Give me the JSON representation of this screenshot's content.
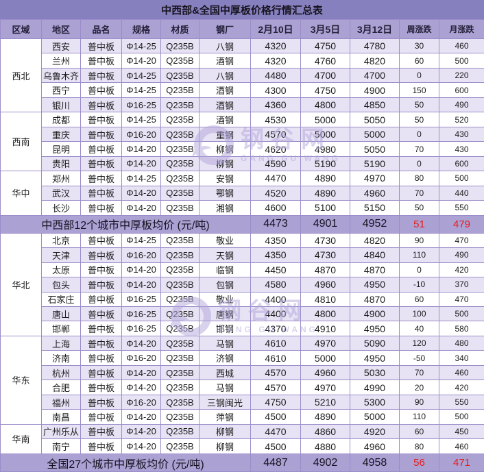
{
  "title": "中西部&全国中厚板价格行情汇总表",
  "watermark": {
    "cn": "钢谷网",
    "en": "GANG GU WANG"
  },
  "colors": {
    "title_bar": "#8680BF",
    "header_row": "#ABA1D3",
    "summary_row": "#ABA1D3",
    "stripe": "#E7E2F4",
    "grid_line": "#9b8cc9",
    "up_red": "#f21d1d",
    "down_green": "#2eb573"
  },
  "chart_data": {
    "type": "table",
    "title": "中西部&全国中厚板价格行情汇总表",
    "columns": [
      "区域",
      "地区",
      "品名",
      "规格",
      "材质",
      "钢厂",
      "2月10日",
      "3月5日",
      "3月12日",
      "周涨跌",
      "月涨跌"
    ],
    "sections": [
      {
        "region": "西北",
        "rows": [
          [
            "西安",
            "普中板",
            "Φ14-25",
            "Q235B",
            "八钢",
            "4320",
            "4750",
            "4780",
            "30",
            "460"
          ],
          [
            "兰州",
            "普中板",
            "Φ14-20",
            "Q235B",
            "酒钢",
            "4320",
            "4760",
            "4820",
            "60",
            "500"
          ],
          [
            "乌鲁木齐",
            "普中板",
            "Φ14-25",
            "Q235B",
            "八钢",
            "4480",
            "4700",
            "4700",
            "0",
            "220"
          ],
          [
            "西宁",
            "普中板",
            "Φ14-25",
            "Q235B",
            "酒钢",
            "4300",
            "4750",
            "4900",
            "150",
            "600"
          ],
          [
            "银川",
            "普中板",
            "Φ16-25",
            "Q235B",
            "酒钢",
            "4360",
            "4800",
            "4850",
            "50",
            "490"
          ]
        ]
      },
      {
        "region": "西南",
        "rows": [
          [
            "成都",
            "普中板",
            "Φ14-25",
            "Q235B",
            "酒钢",
            "4530",
            "5000",
            "5050",
            "50",
            "520"
          ],
          [
            "重庆",
            "普中板",
            "Φ16-20",
            "Q235B",
            "重钢",
            "4570",
            "5000",
            "5000",
            "0",
            "430"
          ],
          [
            "昆明",
            "普中板",
            "Φ14-20",
            "Q235B",
            "柳钢",
            "4620",
            "4980",
            "5050",
            "70",
            "430"
          ],
          [
            "贵阳",
            "普中板",
            "Φ14-20",
            "Q235B",
            "柳钢",
            "4590",
            "5190",
            "5190",
            "0",
            "600"
          ]
        ]
      },
      {
        "region": "华中",
        "rows": [
          [
            "郑州",
            "普中板",
            "Φ14-25",
            "Q235B",
            "安钢",
            "4470",
            "4890",
            "4970",
            "80",
            "500"
          ],
          [
            "武汉",
            "普中板",
            "Φ14-20",
            "Q235B",
            "鄂钢",
            "4520",
            "4890",
            "4960",
            "70",
            "440"
          ],
          [
            "长沙",
            "普中板",
            "Φ14-20",
            "Q235B",
            "湘钢",
            "4600",
            "5100",
            "5150",
            "50",
            "550"
          ]
        ]
      },
      {
        "summary": "中西部12个城市中厚板均价 (元/吨)",
        "values": [
          "4473",
          "4901",
          "4952",
          "51",
          "479"
        ]
      },
      {
        "region": "华北",
        "rows": [
          [
            "北京",
            "普中板",
            "Φ14-25",
            "Q235B",
            "敬业",
            "4350",
            "4730",
            "4820",
            "90",
            "470"
          ],
          [
            "天津",
            "普中板",
            "Φ16-20",
            "Q235B",
            "天钢",
            "4350",
            "4730",
            "4840",
            "110",
            "490"
          ],
          [
            "太原",
            "普中板",
            "Φ14-20",
            "Q235B",
            "临钢",
            "4450",
            "4870",
            "4870",
            "0",
            "420"
          ],
          [
            "包头",
            "普中板",
            "Φ14-20",
            "Q235B",
            "包钢",
            "4580",
            "4960",
            "4950",
            "-10",
            "370"
          ],
          [
            "石家庄",
            "普中板",
            "Φ16-25",
            "Q235B",
            "敬业",
            "4400",
            "4810",
            "4870",
            "60",
            "470"
          ],
          [
            "唐山",
            "普中板",
            "Φ16-25",
            "Q235B",
            "唐钢",
            "4400",
            "4800",
            "4900",
            "100",
            "500"
          ],
          [
            "邯郸",
            "普中板",
            "Φ16-25",
            "Q235B",
            "邯钢",
            "4370",
            "4910",
            "4950",
            "40",
            "580"
          ]
        ]
      },
      {
        "region": "华东",
        "rows": [
          [
            "上海",
            "普中板",
            "Φ14-20",
            "Q235B",
            "马钢",
            "4610",
            "4970",
            "5090",
            "120",
            "480"
          ],
          [
            "济南",
            "普中板",
            "Φ16-20",
            "Q235B",
            "济钢",
            "4610",
            "5000",
            "4950",
            "-50",
            "340"
          ],
          [
            "杭州",
            "普中板",
            "Φ14-20",
            "Q235B",
            "西城",
            "4570",
            "4960",
            "5030",
            "70",
            "460"
          ],
          [
            "合肥",
            "普中板",
            "Φ14-20",
            "Q235B",
            "马钢",
            "4570",
            "4970",
            "4990",
            "20",
            "420"
          ],
          [
            "福州",
            "普中板",
            "Φ16-20",
            "Q235B",
            "三钢闽光",
            "4750",
            "5210",
            "5300",
            "90",
            "550"
          ],
          [
            "南昌",
            "普中板",
            "Φ14-20",
            "Q235B",
            "萍钢",
            "4500",
            "4890",
            "5000",
            "110",
            "500"
          ]
        ]
      },
      {
        "region": "华南",
        "rows": [
          [
            "广州乐从",
            "普中板",
            "Φ14-20",
            "Q235B",
            "柳钢",
            "4470",
            "4860",
            "4920",
            "60",
            "450"
          ],
          [
            "南宁",
            "普中板",
            "Φ14-20",
            "Q235B",
            "柳钢",
            "4500",
            "4880",
            "4960",
            "80",
            "460"
          ]
        ]
      },
      {
        "summary": "全国27个城市中厚板均价 (元/吨)",
        "values": [
          "4487",
          "4902",
          "4958",
          "56",
          "471"
        ]
      }
    ]
  }
}
